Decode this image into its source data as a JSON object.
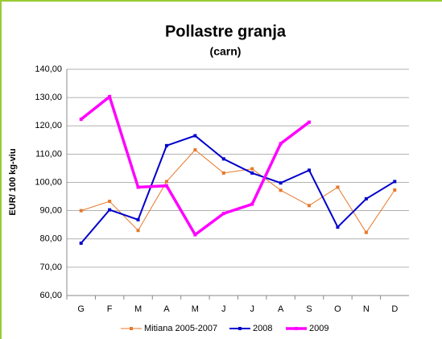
{
  "chart_data": {
    "type": "line",
    "title": "Pollastre granja",
    "subtitle": "(carn)",
    "y_label": "EUR/ 100 kg-viu",
    "categories": [
      "G",
      "F",
      "M",
      "A",
      "M",
      "J",
      "J",
      "A",
      "S",
      "O",
      "N",
      "D"
    ],
    "series": [
      {
        "name": "Mitiana 2005-2007",
        "color": "#e8782a",
        "values": [
          90,
          93.3,
          83,
          100.3,
          111.5,
          103.3,
          104.8,
          97.2,
          91.8,
          98.3,
          82.3,
          97.3
        ]
      },
      {
        "name": "2008",
        "color": "#0000cc",
        "values": [
          78.5,
          90.3,
          86.8,
          113,
          116.5,
          108.3,
          103.3,
          99.8,
          104.3,
          84.2,
          94.2,
          100.3
        ]
      },
      {
        "name": "2009",
        "color": "#ff00ff",
        "values": [
          122.3,
          130.3,
          98.3,
          98.8,
          81.5,
          89,
          92.3,
          113.7,
          121.3,
          null,
          null,
          null
        ]
      }
    ],
    "ylim": [
      60,
      140
    ],
    "yticks": [
      {
        "value": 60,
        "label": "60,00"
      },
      {
        "value": 70,
        "label": "70,00"
      },
      {
        "value": 80,
        "label": "80,00"
      },
      {
        "value": 90,
        "label": "90,00"
      },
      {
        "value": 100,
        "label": "100,00"
      },
      {
        "value": 110,
        "label": "110,00"
      },
      {
        "value": 120,
        "label": "120,00"
      },
      {
        "value": 130,
        "label": "130,00"
      },
      {
        "value": 140,
        "label": "140,00"
      }
    ],
    "grid": true
  }
}
